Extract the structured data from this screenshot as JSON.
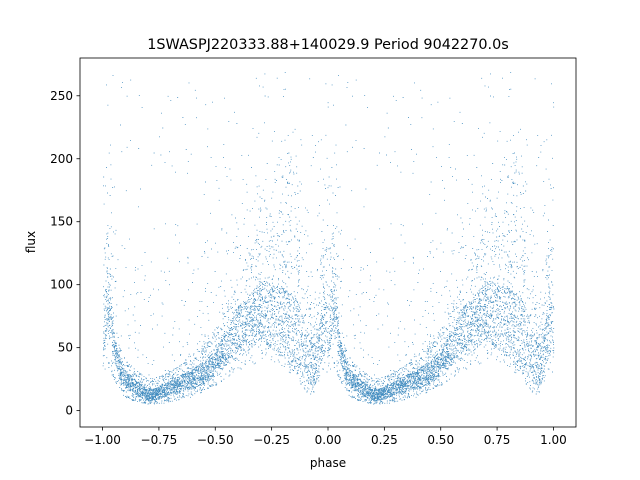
{
  "chart_data": {
    "type": "scatter",
    "title": "1SWASPJ220333.88+140029.9 Period 9042270.0s",
    "xlabel": "phase",
    "ylabel": "flux",
    "xlim": [
      -1.1,
      1.1
    ],
    "ylim": [
      -13,
      280
    ],
    "xticks": [
      -1.0,
      -0.75,
      -0.5,
      -0.25,
      0.0,
      0.25,
      0.5,
      0.75,
      1.0
    ],
    "xtick_labels": [
      "−1.00",
      "−0.75",
      "−0.50",
      "−0.25",
      "0.00",
      "0.25",
      "0.50",
      "0.75",
      "1.00"
    ],
    "yticks": [
      0,
      50,
      100,
      150,
      200,
      250
    ],
    "ytick_labels": [
      "0",
      "50",
      "100",
      "150",
      "200",
      "250"
    ],
    "grid": false,
    "point_color": "#1f77b4",
    "envelope": {
      "phase": [
        0.0,
        0.02,
        0.05,
        0.08,
        0.1,
        0.15,
        0.2,
        0.25,
        0.3,
        0.35,
        0.4,
        0.45,
        0.5,
        0.55,
        0.6,
        0.65,
        0.7,
        0.75,
        0.8,
        0.85,
        0.88,
        0.9,
        0.93,
        0.95,
        0.98,
        1.0
      ],
      "median": [
        55,
        90,
        50,
        30,
        25,
        18,
        12,
        14,
        18,
        22,
        25,
        30,
        38,
        50,
        65,
        70,
        80,
        75,
        70,
        60,
        55,
        45,
        35,
        40,
        70,
        60
      ],
      "upper": [
        130,
        150,
        70,
        50,
        40,
        32,
        25,
        27,
        32,
        38,
        45,
        55,
        65,
        85,
        110,
        130,
        145,
        155,
        160,
        165,
        130,
        110,
        90,
        95,
        140,
        120
      ],
      "lower": [
        25,
        35,
        25,
        15,
        10,
        7,
        5,
        5,
        7,
        9,
        11,
        15,
        20,
        25,
        30,
        35,
        40,
        38,
        35,
        25,
        20,
        15,
        12,
        20,
        30,
        25
      ]
    }
  }
}
